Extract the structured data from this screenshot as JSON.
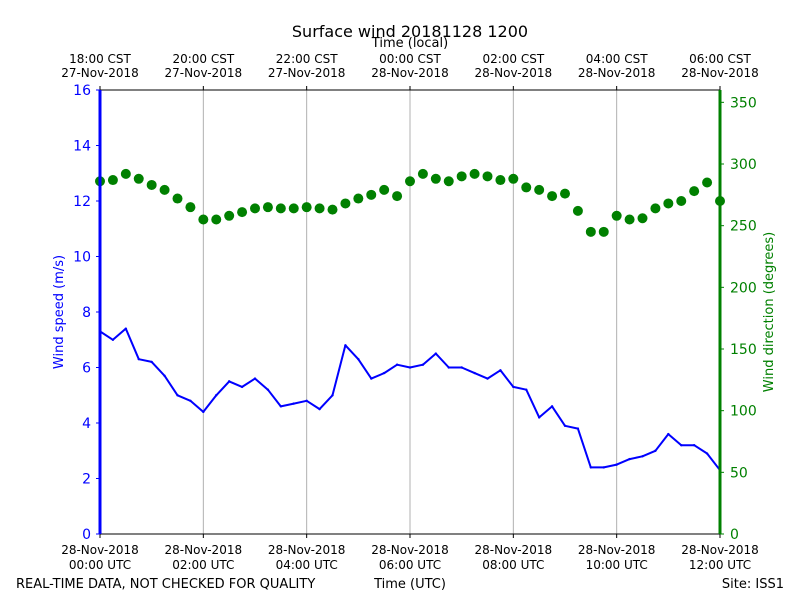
{
  "chart_data": {
    "type": "line",
    "title": "Surface wind 20181128 1200",
    "top_axis_label": "Time (local)",
    "bottom_axis_label": "Time (UTC)",
    "left_axis_label": "Wind speed (m/s)",
    "right_axis_label": "Wind direction (degrees)",
    "footer_left": "REAL-TIME DATA, NOT CHECKED FOR QUALITY",
    "footer_right": "Site: ISS1",
    "x_range_hours": [
      0,
      12
    ],
    "bottom_ticks": [
      {
        "h": 0,
        "line1": "28-Nov-2018",
        "line2": "00:00 UTC"
      },
      {
        "h": 2,
        "line1": "28-Nov-2018",
        "line2": "02:00 UTC"
      },
      {
        "h": 4,
        "line1": "28-Nov-2018",
        "line2": "04:00 UTC"
      },
      {
        "h": 6,
        "line1": "28-Nov-2018",
        "line2": "06:00 UTC"
      },
      {
        "h": 8,
        "line1": "28-Nov-2018",
        "line2": "08:00 UTC"
      },
      {
        "h": 10,
        "line1": "28-Nov-2018",
        "line2": "10:00 UTC"
      },
      {
        "h": 12,
        "line1": "28-Nov-2018",
        "line2": "12:00 UTC"
      }
    ],
    "top_ticks": [
      {
        "h": 0,
        "line1": "18:00 CST",
        "line2": "27-Nov-2018"
      },
      {
        "h": 2,
        "line1": "20:00 CST",
        "line2": "27-Nov-2018"
      },
      {
        "h": 4,
        "line1": "22:00 CST",
        "line2": "27-Nov-2018"
      },
      {
        "h": 6,
        "line1": "00:00 CST",
        "line2": "28-Nov-2018"
      },
      {
        "h": 8,
        "line1": "02:00 CST",
        "line2": "28-Nov-2018"
      },
      {
        "h": 10,
        "line1": "04:00 CST",
        "line2": "28-Nov-2018"
      },
      {
        "h": 12,
        "line1": "06:00 CST",
        "line2": "28-Nov-2018"
      }
    ],
    "y_left": {
      "min": 0,
      "max": 16,
      "ticks": [
        0,
        2,
        4,
        6,
        8,
        10,
        12,
        14,
        16
      ],
      "color": "#0000ff"
    },
    "y_right": {
      "min": 0,
      "max": 360,
      "ticks": [
        0,
        50,
        100,
        150,
        200,
        250,
        300,
        350
      ],
      "color": "#008000"
    },
    "series": [
      {
        "name": "Wind speed (m/s)",
        "axis": "left",
        "style": "line",
        "color": "#0000ff",
        "x": [
          0,
          0.25,
          0.5,
          0.75,
          1,
          1.25,
          1.5,
          1.75,
          2,
          2.25,
          2.5,
          2.75,
          3,
          3.25,
          3.5,
          3.75,
          4,
          4.25,
          4.5,
          4.75,
          5,
          5.25,
          5.5,
          5.75,
          6,
          6.25,
          6.5,
          6.75,
          7,
          7.25,
          7.5,
          7.75,
          8,
          8.25,
          8.5,
          8.75,
          9,
          9.25,
          9.5,
          9.75,
          10,
          10.25,
          10.5,
          10.75,
          11,
          11.25,
          11.5,
          11.75,
          12
        ],
        "values": [
          7.3,
          7.0,
          7.4,
          6.3,
          6.2,
          5.7,
          5.0,
          4.8,
          4.4,
          5.0,
          5.5,
          5.3,
          5.6,
          5.2,
          4.6,
          4.7,
          4.8,
          4.5,
          5.0,
          6.8,
          6.3,
          5.6,
          5.8,
          6.1,
          6.0,
          6.1,
          6.5,
          6.0,
          6.0,
          5.8,
          5.6,
          5.9,
          5.3,
          5.2,
          4.2,
          4.6,
          3.9,
          3.8,
          2.4,
          2.4,
          2.5,
          2.7,
          2.8,
          3.0,
          3.6,
          3.2,
          3.2,
          2.9,
          2.3
        ]
      },
      {
        "name": "Wind direction (degrees)",
        "axis": "right",
        "style": "markers",
        "color": "#008000",
        "x": [
          0,
          0.25,
          0.5,
          0.75,
          1,
          1.25,
          1.5,
          1.75,
          2,
          2.25,
          2.5,
          2.75,
          3,
          3.25,
          3.5,
          3.75,
          4,
          4.25,
          4.5,
          4.75,
          5,
          5.25,
          5.5,
          5.75,
          6,
          6.25,
          6.5,
          6.75,
          7,
          7.25,
          7.5,
          7.75,
          8,
          8.25,
          8.5,
          8.75,
          9,
          9.25,
          9.5,
          9.75,
          10,
          10.25,
          10.5,
          10.75,
          11,
          11.25,
          11.5,
          11.75,
          12
        ],
        "values": [
          286,
          287,
          292,
          288,
          283,
          279,
          272,
          265,
          255,
          255,
          258,
          261,
          264,
          265,
          264,
          264,
          265,
          264,
          263,
          268,
          272,
          275,
          279,
          274,
          286,
          292,
          288,
          286,
          290,
          292,
          290,
          287,
          288,
          281,
          279,
          274,
          276,
          262,
          245,
          245,
          258,
          255,
          256,
          264,
          268,
          270,
          278,
          285,
          270
        ]
      }
    ]
  }
}
